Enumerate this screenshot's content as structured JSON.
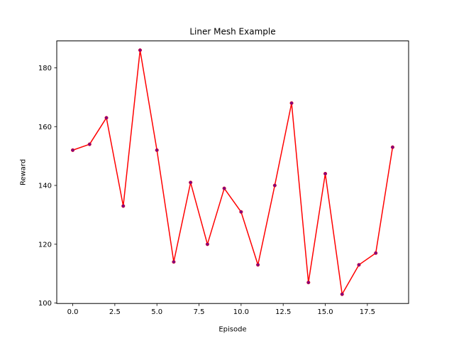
{
  "chart_data": {
    "type": "line",
    "title": "Liner Mesh Example",
    "xlabel": "Episode",
    "ylabel": "Reward",
    "xlim": [
      -0.95,
      19.95
    ],
    "ylim": [
      99.85,
      189.15
    ],
    "xticks": [
      0,
      2.5,
      5,
      7.5,
      10,
      12.5,
      15,
      17.5
    ],
    "xtick_labels": [
      "0.0",
      "2.5",
      "5.0",
      "7.5",
      "10.0",
      "12.5",
      "15.0",
      "17.5"
    ],
    "yticks": [
      100,
      120,
      140,
      160,
      180
    ],
    "ytick_labels": [
      "100",
      "120",
      "140",
      "160",
      "180"
    ],
    "grid": false,
    "series": [
      {
        "x": [
          0,
          1,
          2,
          3,
          4,
          5,
          6,
          7,
          8,
          9,
          10,
          11,
          12,
          13,
          14,
          15,
          16,
          17,
          18,
          19
        ],
        "values": [
          152,
          154,
          163,
          133,
          186,
          152,
          114,
          141,
          120,
          139,
          131,
          113,
          140,
          168,
          107,
          144,
          103,
          113,
          117,
          153
        ],
        "line_color": "#ff0000",
        "marker_color": "#800080"
      }
    ]
  }
}
